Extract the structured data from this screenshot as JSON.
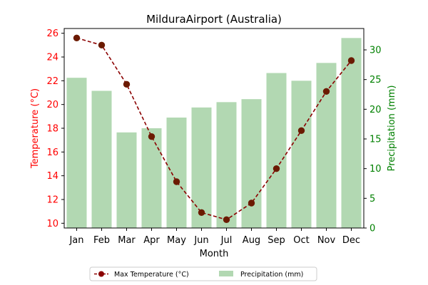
{
  "chart_data": {
    "type": "bar+line",
    "title": "MilduraAirport (Australia)",
    "xlabel": "Month",
    "ylabel_left": "Temperature (°C)",
    "ylabel_right": "Precipitation (mm)",
    "categories": [
      "Jan",
      "Feb",
      "Mar",
      "Apr",
      "May",
      "Jun",
      "Jul",
      "Aug",
      "Sep",
      "Oct",
      "Nov",
      "Dec"
    ],
    "left_axis": {
      "ylim": [
        9.6,
        26.4
      ],
      "ticks": [
        10,
        12,
        14,
        16,
        18,
        20,
        22,
        24,
        26
      ]
    },
    "right_axis": {
      "ylim": [
        0,
        33.6
      ],
      "ticks": [
        0,
        5,
        10,
        15,
        20,
        25,
        30
      ]
    },
    "series": [
      {
        "name": "Max Temperature (°C)",
        "type": "line",
        "axis": "left",
        "color": "#8b0000",
        "values": [
          25.6,
          25.0,
          21.7,
          17.3,
          13.5,
          10.9,
          10.3,
          11.7,
          14.6,
          17.8,
          21.1,
          23.7
        ]
      },
      {
        "name": "Precipitation (mm)",
        "type": "bar",
        "axis": "right",
        "color": "#b2d8b2",
        "values": [
          25.3,
          23.1,
          16.1,
          16.8,
          18.6,
          20.3,
          21.2,
          21.7,
          26.1,
          24.8,
          27.8,
          32.0
        ]
      }
    ],
    "left_axis_color": "#ff0000",
    "right_axis_color": "#008000",
    "legend_position": "bottom-center"
  }
}
